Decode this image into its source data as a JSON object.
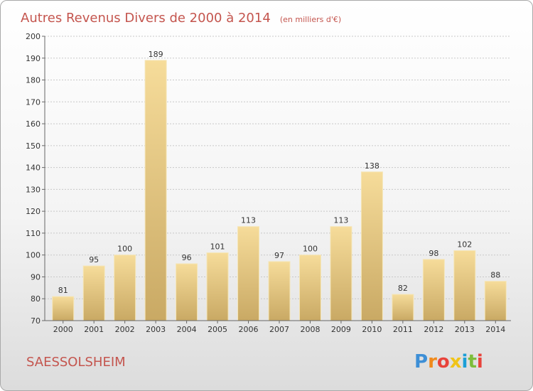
{
  "chart_data": {
    "type": "bar",
    "title": "Autres Revenus Divers de 2000 à 2014",
    "subtitle": "(en milliers d'€)",
    "categories": [
      "2000",
      "2001",
      "2002",
      "2003",
      "2004",
      "2005",
      "2006",
      "2007",
      "2008",
      "2009",
      "2010",
      "2011",
      "2012",
      "2013",
      "2014"
    ],
    "values": [
      81,
      95,
      100,
      189,
      96,
      101,
      113,
      97,
      100,
      113,
      138,
      82,
      98,
      102,
      88
    ],
    "ylim": [
      70,
      200
    ],
    "yticks": [
      70,
      80,
      90,
      100,
      110,
      120,
      130,
      140,
      150,
      160,
      170,
      180,
      190,
      200
    ],
    "grid": true,
    "colors": {
      "bar_light": "#f6dc9a",
      "bar_dark": "#c9a964",
      "bar_edge": "#f5e6b8",
      "grid": "#c8c8c8",
      "axis": "#666666"
    }
  },
  "footer": {
    "commune": "SAESSOLSHEIM",
    "logo": {
      "text": "Proxiti",
      "letter_colors": [
        "#3d8fd6",
        "#f08a1c",
        "#e8433b",
        "#f0c419",
        "#1c9fd6",
        "#7cbd3a",
        "#e8433b"
      ]
    }
  }
}
